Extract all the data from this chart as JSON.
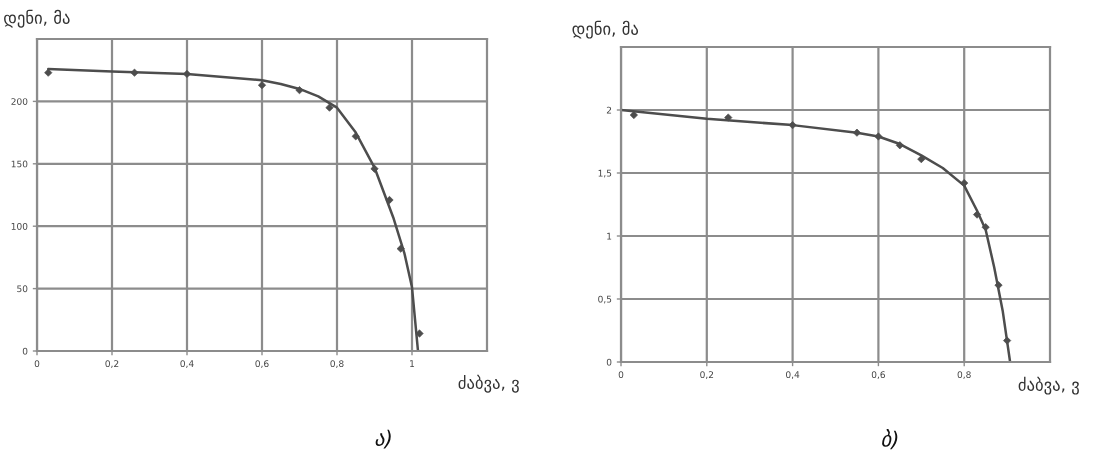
{
  "chart_data": [
    {
      "type": "line",
      "ylabel": "დენი, მა",
      "xlabel": "ძაბვა, ვ",
      "annotations": [
        "ა)"
      ],
      "xlim": [
        0,
        1.2
      ],
      "ylim": [
        0,
        250
      ],
      "xticks": [
        0,
        {
          "value": 0.2,
          "label": "0,2"
        },
        {
          "value": 0.4,
          "label": "0,4"
        },
        {
          "value": 0.6,
          "label": "0,6"
        },
        {
          "value": 0.8,
          "label": "0,8"
        },
        1
      ],
      "yticks": [
        0,
        50,
        100,
        150,
        200
      ],
      "grid": true,
      "series": [
        {
          "color": "#4d4d4d",
          "x": [
            0.03,
            0.2,
            0.4,
            0.6,
            0.65,
            0.7,
            0.75,
            0.8,
            0.85,
            0.9,
            0.95,
            0.98,
            1.0,
            1.016
          ],
          "values": [
            226,
            224,
            222,
            217,
            214,
            210,
            204,
            195,
            175,
            147,
            107,
            78,
            51,
            0
          ]
        },
        {
          "type": "scatter",
          "marker": "diamond",
          "color": "#4d4d4d",
          "x": [
            0.03,
            0.26,
            0.4,
            0.6,
            0.7,
            0.78,
            0.85,
            0.9,
            0.94,
            0.97,
            1.02
          ],
          "values": [
            223,
            223,
            222,
            213,
            209,
            195,
            172,
            146,
            121,
            82,
            14
          ]
        }
      ]
    },
    {
      "type": "line",
      "ylabel": "დენი, მა",
      "xlabel": "ძაბვა, ვ",
      "annotations": [
        "ბ)"
      ],
      "xlim": [
        0,
        1.0
      ],
      "ylim": [
        0,
        2.5
      ],
      "xticks": [
        0,
        {
          "value": 0.2,
          "label": "0,2"
        },
        {
          "value": 0.4,
          "label": "0,4"
        },
        {
          "value": 0.6,
          "label": "0,6"
        },
        {
          "value": 0.8,
          "label": "0,8"
        }
      ],
      "yticks": [
        0,
        {
          "value": 0.5,
          "label": "0,5"
        },
        1,
        {
          "value": 1.5,
          "label": "1,5"
        },
        2
      ],
      "grid": true,
      "series": [
        {
          "color": "#4d4d4d",
          "x": [
            0,
            0.2,
            0.4,
            0.55,
            0.6,
            0.65,
            0.7,
            0.75,
            0.8,
            0.83,
            0.85,
            0.87,
            0.89,
            0.907
          ],
          "values": [
            2.0,
            1.93,
            1.88,
            1.82,
            1.79,
            1.73,
            1.64,
            1.54,
            1.4,
            1.2,
            1.05,
            0.75,
            0.4,
            0.0
          ]
        },
        {
          "type": "scatter",
          "marker": "diamond",
          "color": "#4d4d4d",
          "x": [
            0.03,
            0.25,
            0.4,
            0.55,
            0.6,
            0.65,
            0.7,
            0.8,
            0.83,
            0.85,
            0.88,
            0.9
          ],
          "values": [
            1.96,
            1.94,
            1.88,
            1.82,
            1.79,
            1.72,
            1.61,
            1.42,
            1.17,
            1.07,
            0.61,
            0.17
          ]
        }
      ]
    }
  ]
}
